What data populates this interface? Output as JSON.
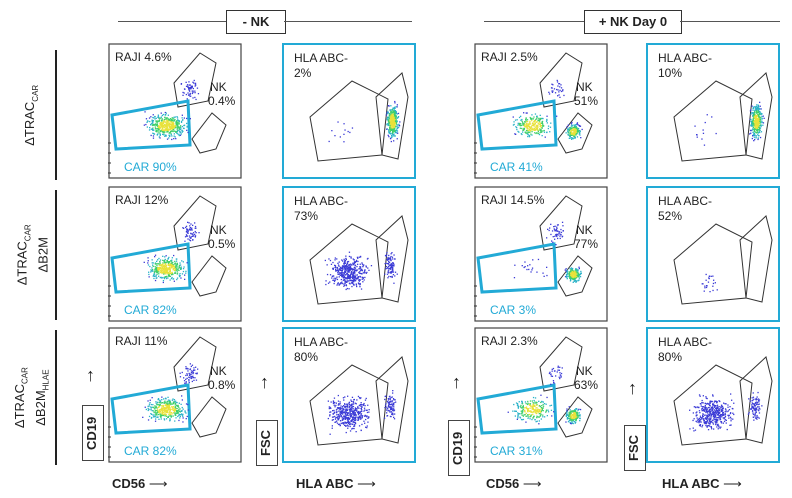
{
  "headers": {
    "minus_nk": "- NK",
    "plus_nk": "+ NK Day 0"
  },
  "rows": [
    {
      "main": "ΔTRAC",
      "sub": "CAR",
      "line2": "",
      "line2_main": "",
      "line2_sub": ""
    },
    {
      "main": "ΔTRAC",
      "sub": "CAR",
      "line2": "ΔB2M",
      "line2_main": "",
      "line2_sub": ""
    },
    {
      "main": "ΔTRAC",
      "sub": "CAR",
      "line2": "",
      "line2_main": "ΔB2M",
      "line2_sub": "HLAE"
    }
  ],
  "cd19_panels": [
    {
      "raji": "RAJI 4.6%",
      "nk": "NK",
      "nk_pct": "0.4%",
      "car": "CAR 90%"
    },
    {
      "raji": "RAJI 12%",
      "nk": "NK",
      "nk_pct": "0.5%",
      "car": "CAR 82%"
    },
    {
      "raji": "RAJI 11%",
      "nk": "NK",
      "nk_pct": "0.8%",
      "car": "CAR 82%"
    },
    {
      "raji": "RAJI 2.5%",
      "nk": "NK",
      "nk_pct": "51%",
      "car": "CAR 41%"
    },
    {
      "raji": "RAJI 14.5%",
      "nk": "NK",
      "nk_pct": "77%",
      "car": "CAR 3%"
    },
    {
      "raji": "RAJI 2.3%",
      "nk": "NK",
      "nk_pct": "63%",
      "car": "CAR 31%"
    }
  ],
  "hla_panels": [
    {
      "label": "HLA ABC-",
      "pct": "2%"
    },
    {
      "label": "HLA ABC-",
      "pct": "73%"
    },
    {
      "label": "HLA ABC-",
      "pct": "80%"
    },
    {
      "label": "HLA ABC-",
      "pct": "10%"
    },
    {
      "label": "HLA ABC-",
      "pct": "52%"
    },
    {
      "label": "HLA ABC-",
      "pct": "80%"
    }
  ],
  "axes": {
    "cd19": "CD19",
    "cd56": "CD56",
    "fsc": "FSC",
    "hla_abc": "HLA ABC"
  },
  "colors": {
    "car_gate": "#22aad6",
    "panel_border": "#444444",
    "gate_line": "#333333",
    "dots": "#3b3bd6"
  }
}
